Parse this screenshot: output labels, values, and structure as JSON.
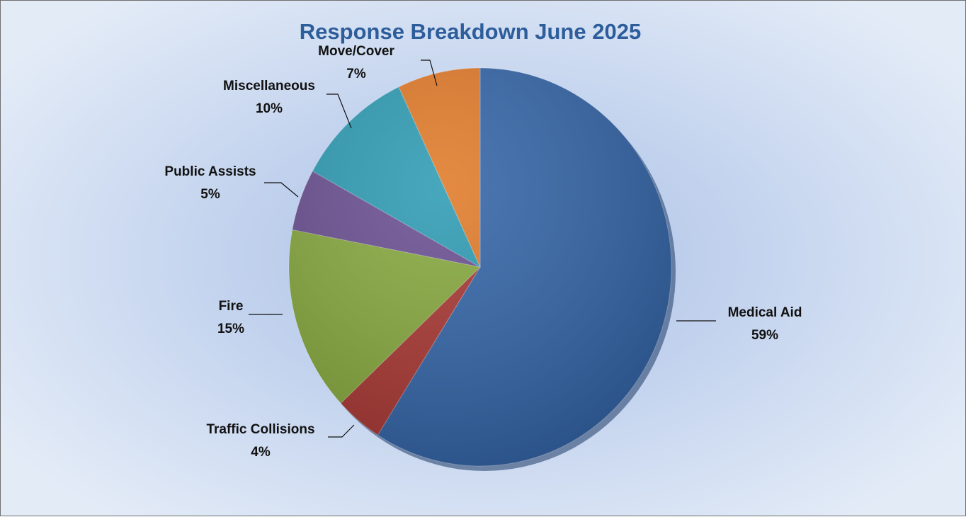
{
  "chart_data": {
    "type": "pie",
    "title": "Response Breakdown June 2025",
    "slices": [
      {
        "label": "Medical Aid",
        "pct_label": "59%",
        "value": 59,
        "color": "#3364a6"
      },
      {
        "label": "Traffic Collisions",
        "pct_label": "4%",
        "value": 4,
        "color": "#a83733"
      },
      {
        "label": "Fire",
        "pct_label": "15%",
        "value": 15,
        "color": "#86a83e"
      },
      {
        "label": "Public Assists",
        "pct_label": "5%",
        "value": 5,
        "color": "#6a4f91"
      },
      {
        "label": "Miscellaneous",
        "pct_label": "10%",
        "value": 10,
        "color": "#2e9bb3"
      },
      {
        "label": "Move/Cover",
        "pct_label": "7%",
        "value": 7,
        "color": "#e07a29"
      }
    ]
  }
}
